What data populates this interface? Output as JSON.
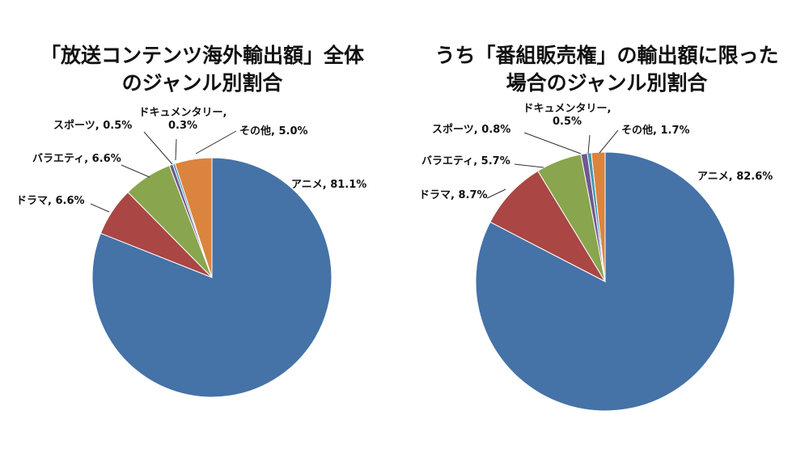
{
  "chart_data": [
    {
      "type": "pie",
      "title": [
        "「放送コンテンツ海外輸出額」全体",
        "のジャンル別割合"
      ],
      "slices": [
        {
          "name": "アニメ",
          "value": 81.1,
          "label": "アニメ, 81.1%",
          "color": "#4572a7"
        },
        {
          "name": "ドラマ",
          "value": 6.6,
          "label": "ドラマ, 6.6%",
          "color": "#aa4643"
        },
        {
          "name": "バラエティ",
          "value": 6.6,
          "label": "バラエティ, 6.6%",
          "color": "#89a54e"
        },
        {
          "name": "スポーツ",
          "value": 0.5,
          "label": "スポーツ, 0.5%",
          "color": "#71588f"
        },
        {
          "name": "ドキュメンタリー",
          "value": 0.3,
          "label": [
            "ドキュメンタリー,",
            "0.3%"
          ],
          "color": "#4198af"
        },
        {
          "name": "その他",
          "value": 5.0,
          "label": "その他, 5.0%",
          "color": "#db843d"
        }
      ]
    },
    {
      "type": "pie",
      "title": [
        "うち「番組販売権」の輸出額に限った",
        "場合のジャンル別割合"
      ],
      "slices": [
        {
          "name": "アニメ",
          "value": 82.6,
          "label": "アニメ, 82.6%",
          "color": "#4572a7"
        },
        {
          "name": "ドラマ",
          "value": 8.7,
          "label": "ドラマ, 8.7%",
          "color": "#aa4643"
        },
        {
          "name": "バラエティ",
          "value": 5.7,
          "label": "バラエティ, 5.7%",
          "color": "#89a54e"
        },
        {
          "name": "スポーツ",
          "value": 0.8,
          "label": "スポーツ, 0.8%",
          "color": "#71588f"
        },
        {
          "name": "ドキュメンタリー",
          "value": 0.5,
          "label": [
            "ドキュメンタリー,",
            "0.5%"
          ],
          "color": "#4198af"
        },
        {
          "name": "その他",
          "value": 1.7,
          "label": "その他, 1.7%",
          "color": "#db843d"
        }
      ]
    }
  ]
}
